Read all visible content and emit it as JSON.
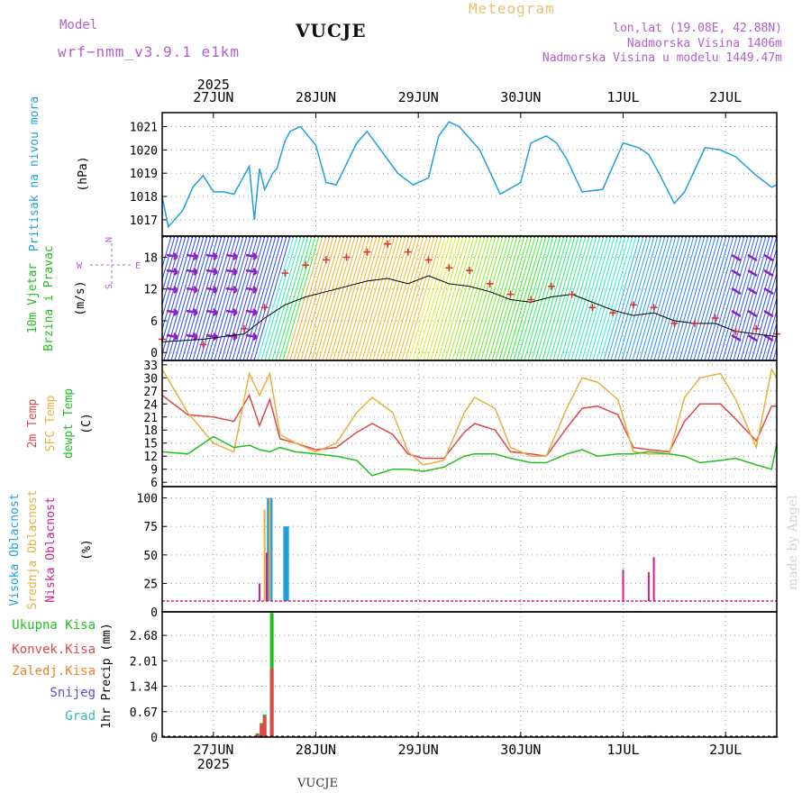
{
  "header": {
    "model_label": "Model",
    "model_name": "wrf−nmm_v3.9.1  e1km",
    "station": "VUCJE",
    "title": "Meteogram",
    "lonlat": "lon,lat (19.08E, 42.88N)",
    "altitude": "Nadmorska Visina 1406m",
    "model_altitude": "Nadmorska Visina u modelu 1449.47m",
    "footer_station": "VUCJE",
    "credit": "made by Angel"
  },
  "time_axis": {
    "year": "2025",
    "days": [
      "27JUN",
      "28JUN",
      "29JUN",
      "30JUN",
      "1JUL",
      "2JUL"
    ]
  },
  "colors": {
    "pressure": "#1ea0e0",
    "t2m": "#e04848",
    "sfc": "#e8b040",
    "dewpt": "#20c020",
    "high_cloud": "#1ea0e0",
    "mid_cloud": "#e8b040",
    "low_cloud": "#d0208c",
    "total_precip": "#20c020",
    "conv_precip": "#e04848",
    "frozen_precip": "#f08030",
    "snow": "#5050e0",
    "hail": "#30c0b0",
    "wind_purple": "#9020c0"
  },
  "chart_data": [
    {
      "type": "line",
      "panel": "pressure",
      "ylabel_name": "Pritisak na nivou mora",
      "ylabel_unit": "(hPa)",
      "yticks": [
        "1017",
        "1018",
        "1019",
        "1020",
        "1021"
      ],
      "ylim": [
        1016.3,
        1021.6
      ],
      "xlim": [
        0,
        6
      ],
      "grid": true,
      "x": [
        0.0,
        0.06,
        0.2,
        0.3,
        0.4,
        0.5,
        0.6,
        0.7,
        0.85,
        0.9,
        0.95,
        1.0,
        1.08,
        1.12,
        1.2,
        1.25,
        1.35,
        1.5,
        1.6,
        1.7,
        1.9,
        2.0,
        2.15,
        2.3,
        2.45,
        2.6,
        2.7,
        2.8,
        2.9,
        3.0,
        3.1,
        3.3,
        3.5,
        3.6,
        3.75,
        3.85,
        3.95,
        4.1,
        4.3,
        4.5,
        4.65,
        4.75,
        4.85,
        5.0,
        5.1,
        5.3,
        5.45,
        5.6,
        5.8,
        5.95,
        6.0
      ],
      "y": [
        1018.0,
        1016.7,
        1017.4,
        1018.4,
        1018.9,
        1018.2,
        1018.2,
        1018.1,
        1019.3,
        1017.0,
        1019.2,
        1018.3,
        1019.0,
        1019.2,
        1020.4,
        1020.8,
        1021.0,
        1020.2,
        1018.6,
        1018.5,
        1020.3,
        1020.8,
        1019.9,
        1019.0,
        1018.5,
        1018.8,
        1020.6,
        1021.2,
        1021.0,
        1020.5,
        1020.0,
        1018.1,
        1018.6,
        1020.3,
        1020.6,
        1020.3,
        1019.6,
        1018.2,
        1018.3,
        1020.3,
        1020.1,
        1019.8,
        1019.0,
        1017.7,
        1018.2,
        1020.1,
        1020.0,
        1019.7,
        1018.9,
        1018.4,
        1018.5
      ]
    },
    {
      "type": "line",
      "panel": "wind",
      "ylabel_name1": "10m Vjetar",
      "ylabel_name2": "Brzina i Pravac",
      "ylabel_unit": "(m/s)",
      "compass_n": "N",
      "compass_s": "S",
      "compass_w": "W",
      "compass_e": "E",
      "yticks": [
        "0",
        "6",
        "12",
        "18"
      ],
      "ylim": [
        -1.5,
        22
      ],
      "xlim": [
        0,
        6
      ],
      "grid": true,
      "series": [
        {
          "name": "wind speed",
          "x": [
            0.0,
            0.4,
            0.8,
            1.0,
            1.2,
            1.4,
            1.6,
            1.8,
            2.0,
            2.2,
            2.4,
            2.6,
            2.8,
            3.0,
            3.2,
            3.4,
            3.6,
            3.8,
            4.0,
            4.2,
            4.4,
            4.6,
            4.8,
            5.0,
            5.2,
            5.4,
            5.6,
            5.8,
            6.0
          ],
          "y": [
            2.0,
            2.5,
            3.5,
            6.5,
            9.0,
            10.5,
            11.5,
            12.5,
            13.5,
            14.0,
            13.0,
            14.5,
            13.0,
            12.5,
            11.5,
            10.0,
            9.5,
            10.5,
            11.0,
            9.5,
            8.0,
            7.0,
            7.5,
            6.0,
            5.5,
            5.5,
            4.0,
            3.5,
            3.0
          ]
        },
        {
          "name": "gust",
          "x": [
            0.0,
            0.4,
            0.8,
            1.0,
            1.2,
            1.4,
            1.6,
            1.8,
            2.0,
            2.2,
            2.4,
            2.6,
            2.8,
            3.0,
            3.2,
            3.4,
            3.6,
            3.8,
            4.0,
            4.2,
            4.4,
            4.6,
            4.8,
            5.0,
            5.2,
            5.4,
            5.6,
            5.8,
            6.0
          ],
          "y": [
            2.5,
            1.5,
            4.5,
            8.5,
            15.0,
            16.5,
            17.5,
            18.0,
            19.0,
            20.5,
            19.0,
            17.5,
            16.0,
            15.5,
            13.0,
            11.0,
            10.0,
            12.5,
            11.0,
            8.5,
            7.5,
            9.0,
            8.5,
            5.5,
            5.5,
            6.5,
            4.0,
            4.5,
            3.5
          ]
        }
      ]
    },
    {
      "type": "line",
      "panel": "temperature",
      "ylabel_t2m": "2m Temp",
      "ylabel_sfc": "SFC Temp",
      "ylabel_dew": "dewpt Temp",
      "ylabel_unit": "(C)",
      "yticks": [
        "6",
        "9",
        "12",
        "15",
        "18",
        "21",
        "24",
        "27",
        "30",
        "33"
      ],
      "ylim": [
        5,
        34
      ],
      "xlim": [
        0,
        6
      ],
      "grid": true,
      "x": [
        0.0,
        0.25,
        0.5,
        0.7,
        0.85,
        0.95,
        1.05,
        1.15,
        1.3,
        1.5,
        1.7,
        1.9,
        2.05,
        2.25,
        2.4,
        2.55,
        2.75,
        2.95,
        3.05,
        3.25,
        3.4,
        3.6,
        3.75,
        3.95,
        4.1,
        4.25,
        4.45,
        4.6,
        4.75,
        4.95,
        5.1,
        5.25,
        5.45,
        5.6,
        5.8,
        5.95,
        6.0
      ],
      "series": [
        {
          "name": "2m Temp",
          "y": [
            26.0,
            21.5,
            21.0,
            20.0,
            26.0,
            19.0,
            25.0,
            16.0,
            15.0,
            13.5,
            14.0,
            17.5,
            19.5,
            17.0,
            12.5,
            11.5,
            11.5,
            17.5,
            19.5,
            18.0,
            13.0,
            12.5,
            12.0,
            18.5,
            23.0,
            23.5,
            21.5,
            14.0,
            13.5,
            13.0,
            20.0,
            24.0,
            24.0,
            20.5,
            15.5,
            23.5,
            23.5
          ]
        },
        {
          "name": "SFC Temp",
          "y": [
            32.0,
            22.0,
            15.0,
            13.0,
            31.0,
            26.0,
            31.0,
            17.0,
            15.0,
            13.0,
            15.0,
            22.0,
            25.5,
            22.0,
            13.0,
            10.0,
            11.0,
            22.0,
            25.5,
            23.0,
            14.0,
            12.0,
            12.0,
            23.0,
            30.0,
            29.0,
            25.0,
            13.0,
            12.5,
            12.5,
            25.5,
            30.0,
            31.0,
            25.0,
            14.0,
            32.0,
            30.0
          ]
        },
        {
          "name": "dewpt Temp",
          "y": [
            13.0,
            12.5,
            16.5,
            14.0,
            14.5,
            13.5,
            13.0,
            14.0,
            13.0,
            12.5,
            12.0,
            11.0,
            7.5,
            9.0,
            9.0,
            8.5,
            9.5,
            12.0,
            12.5,
            12.5,
            11.5,
            10.5,
            10.5,
            12.5,
            13.5,
            12.0,
            12.5,
            12.5,
            13.0,
            12.5,
            12.0,
            10.5,
            11.0,
            11.5,
            10.0,
            9.0,
            15.0
          ]
        }
      ]
    },
    {
      "type": "bar",
      "panel": "cloud",
      "ylabel_high": "Visoka Oblacnost",
      "ylabel_mid": "Srednja Oblacnost",
      "ylabel_low": "Niska Oblacnost",
      "ylabel_unit": "(%)",
      "yticks": [
        "0",
        "25",
        "50",
        "75",
        "100"
      ],
      "ylim": [
        0,
        110
      ],
      "xlim": [
        0,
        6
      ],
      "grid": true,
      "series": [
        {
          "name": "Visoka Oblacnost",
          "x": [
            0.12,
            1.04,
            1.06,
            1.2,
            1.22
          ],
          "y": [
            3,
            100,
            100,
            75,
            75
          ]
        },
        {
          "name": "Srednja Oblacnost",
          "x": [
            0.03,
            0.55,
            1.0,
            1.05,
            4.7
          ],
          "y": [
            10,
            10,
            90,
            100,
            5
          ]
        },
        {
          "name": "Niska Oblacnost",
          "x": [
            0.9,
            0.95,
            1.02,
            1.08,
            1.8,
            2.15,
            2.6,
            3.3,
            4.5,
            4.7,
            4.75,
            4.8,
            5.9
          ],
          "y": [
            8,
            25,
            52,
            5,
            7,
            7,
            10,
            7,
            37,
            10,
            35,
            48,
            8
          ]
        }
      ]
    },
    {
      "type": "bar",
      "panel": "precipitation",
      "ylabel_total": "Ukupna Kisa",
      "ylabel_conv": "Konvek.Kisa",
      "ylabel_frozen": "Zaledj.Kisa",
      "ylabel_snow": "Snijeg",
      "ylabel_hail": "Grad",
      "ylabel_unit": "1hr Precip (mm)",
      "yticks": [
        "0",
        "0.67",
        "1.34",
        "2.01",
        "2.68"
      ],
      "ylim": [
        0,
        3.3
      ],
      "xlim": [
        0,
        6
      ],
      "grid": true,
      "series": [
        {
          "name": "Ukupna Kisa",
          "x": [
            0.93,
            0.97,
            1.0,
            1.07,
            4.75,
            6.0
          ],
          "y": [
            0.1,
            0.37,
            0.6,
            3.27,
            0.05,
            0.02
          ]
        },
        {
          "name": "Konvek.Kisa",
          "x": [
            0.93,
            0.97,
            1.0,
            1.07,
            4.75
          ],
          "y": [
            0.08,
            0.34,
            0.55,
            1.8,
            0.03
          ]
        }
      ]
    }
  ]
}
